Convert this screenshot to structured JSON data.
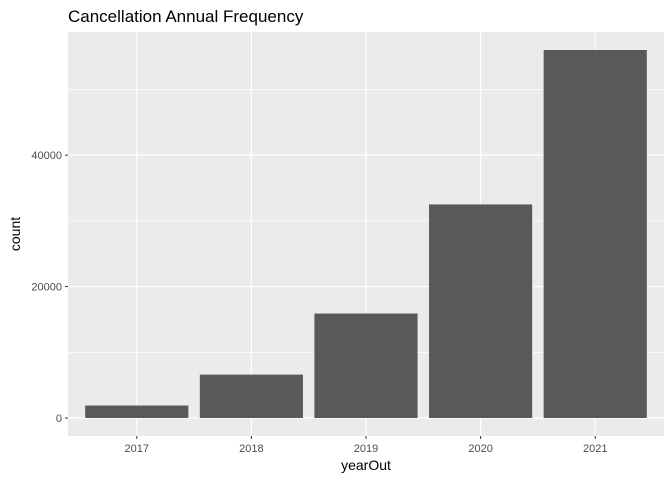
{
  "chart_data": {
    "type": "bar",
    "title": "Cancellation Annual Frequency",
    "xlabel": "yearOut",
    "ylabel": "count",
    "categories": [
      "2017",
      "2018",
      "2019",
      "2020",
      "2021"
    ],
    "values": [
      1900,
      6600,
      15900,
      32500,
      56000
    ],
    "ylim": [
      0,
      59000
    ],
    "yticks": [
      0,
      20000,
      40000
    ],
    "grid": true,
    "colors": {
      "bar": "#595959",
      "panel": "#ebebeb",
      "grid_major": "#ffffff",
      "tick_text": "#4d4d4d"
    }
  }
}
